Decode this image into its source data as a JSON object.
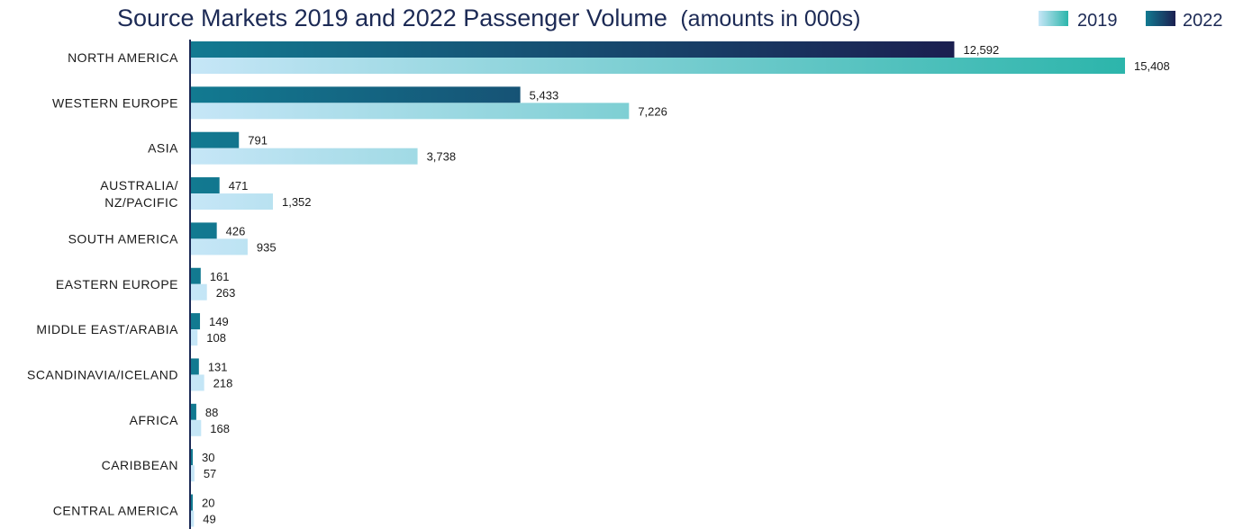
{
  "chart_data": {
    "type": "bar",
    "orientation": "horizontal",
    "title": "Source Markets 2019 and 2022 Passenger Volume",
    "subtitle": "(amounts in 000s)",
    "legend": {
      "placement": "top-right",
      "entries": [
        "2019",
        "2022"
      ]
    },
    "categories": [
      "NORTH AMERICA",
      "WESTERN EUROPE",
      "ASIA",
      "AUSTRALIA/ NZ/PACIFIC",
      "SOUTH AMERICA",
      "EASTERN EUROPE",
      "MIDDLE EAST/ARABIA",
      "SCANDINAVIA/ICELAND",
      "AFRICA",
      "CARIBBEAN",
      "CENTRAL AMERICA"
    ],
    "series": [
      {
        "name": "2022",
        "values": [
          12592,
          5433,
          791,
          471,
          426,
          161,
          149,
          131,
          88,
          30,
          20
        ],
        "labels": [
          "12,592",
          "5,433",
          "791",
          "471",
          "426",
          "161",
          "149",
          "131",
          "88",
          "30",
          "20"
        ]
      },
      {
        "name": "2019",
        "values": [
          15408,
          7226,
          3738,
          1352,
          935,
          263,
          108,
          218,
          168,
          57,
          49
        ],
        "labels": [
          "15,408",
          "7,226",
          "3,738",
          "1,352",
          "935",
          "263",
          "108",
          "218",
          "168",
          "57",
          "49"
        ]
      }
    ],
    "xlim": [
      0,
      15408
    ],
    "grid": false,
    "colors": {
      "2019_start": "#c6e6f7",
      "2019_end": "#2cb5ab",
      "2022_start": "#127a91",
      "2022_end": "#1b1f50",
      "axis": "#1c2a55",
      "text": "#1a1a1a",
      "title": "#1c2a55"
    }
  }
}
